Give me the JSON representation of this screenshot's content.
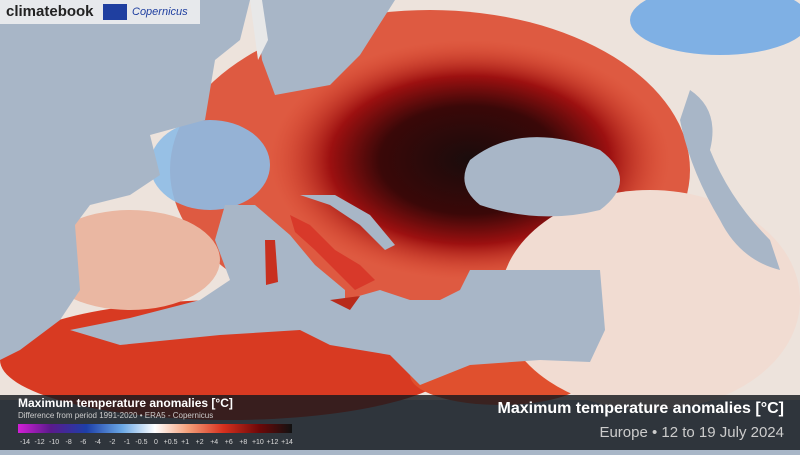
{
  "logo": {
    "brand": "climatebook",
    "partner": "Copernicus"
  },
  "legend": {
    "title": "Maximum temperature anomalies [°C]",
    "subtitle": "Difference from period 1991-2020 • ERA5 - Copernicus",
    "ticks": [
      "-14",
      "-12",
      "-10",
      "-8",
      "-6",
      "-4",
      "-2",
      "-1",
      "-0.5",
      "0",
      "+0.5",
      "+1",
      "+2",
      "+4",
      "+6",
      "+8",
      "+10",
      "+12",
      "+14"
    ]
  },
  "caption": {
    "title": "Maximum temperature anomalies [°C]",
    "subtitle": "Europe • 12 to 19 July 2024"
  }
}
